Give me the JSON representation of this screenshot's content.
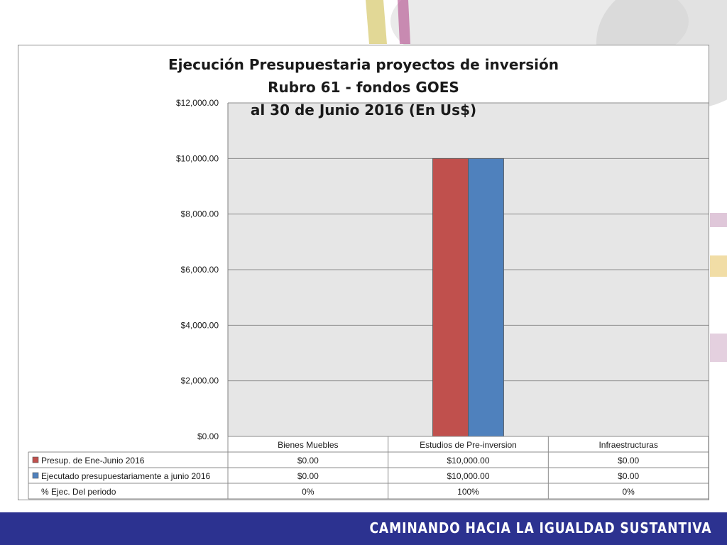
{
  "chart_data": {
    "type": "bar",
    "title_lines": [
      "Ejecución Presupuestaria proyectos de inversión",
      "Rubro 61 - fondos GOES",
      "al 30 de Junio  2016 (En Us$)"
    ],
    "categories": [
      "Bienes Muebles",
      "Estudios de Pre-inversion",
      "Infraestructuras"
    ],
    "series": [
      {
        "name": "Presup. de Ene-Junio 2016",
        "values": [
          0,
          10000,
          0
        ],
        "color": "#c0504d"
      },
      {
        "name": "Ejecutado presupuestariamente a junio 2016",
        "values": [
          0,
          10000,
          0
        ],
        "color": "#4f81bd"
      }
    ],
    "ylim": [
      0,
      12000
    ],
    "y_ticks": [
      0,
      2000,
      4000,
      6000,
      8000,
      10000,
      12000
    ],
    "y_tick_labels": [
      "$0.00",
      "$2,000.00",
      "$4,000.00",
      "$6,000.00",
      "$8,000.00",
      "$10,000.00",
      "$12,000.00"
    ],
    "grid": true,
    "legend": "data-table",
    "data_table": {
      "rows": [
        {
          "label": "Presup. de Ene-Junio 2016",
          "cells": [
            "$0.00",
            "$10,000.00",
            "$0.00"
          ],
          "swatch": "#c0504d"
        },
        {
          "label": "Ejecutado presupuestariamente a junio 2016",
          "cells": [
            "$0.00",
            "$10,000.00",
            "$0.00"
          ],
          "swatch": "#4f81bd"
        },
        {
          "label": "% Ejec. Del periodo",
          "cells": [
            "0%",
            "100%",
            "0%"
          ],
          "swatch": ""
        }
      ]
    }
  },
  "footer": {
    "slogan": "CAMINANDO HACIA LA IGUALDAD SUSTANTIVA"
  },
  "colors": {
    "footer_bg": "#2c3290",
    "plot_bg": "#e6e6e6",
    "gridline": "#8c8c8c"
  }
}
